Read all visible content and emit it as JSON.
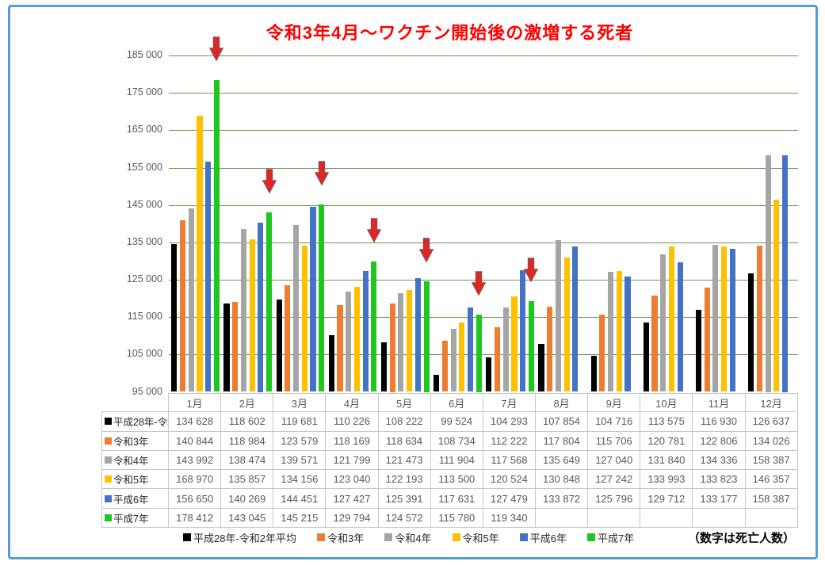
{
  "title": "令和3年4月～ワクチン開始後の激増する死者",
  "footnote": "（数字は死亡人数）",
  "chart_data": {
    "type": "bar",
    "title": "令和3年4月～ワクチン開始後の激増する死者",
    "categories": [
      "1月",
      "2月",
      "3月",
      "4月",
      "5月",
      "6月",
      "7月",
      "8月",
      "9月",
      "10月",
      "11月",
      "12月"
    ],
    "series": [
      {
        "name": "平成28年-令和2年平均",
        "color": "#000000",
        "values": [
          134628,
          118602,
          119681,
          110226,
          108222,
          99524,
          104293,
          107854,
          104716,
          113575,
          116930,
          126637
        ]
      },
      {
        "name": "令和3年",
        "color": "#ED7D31",
        "values": [
          140844,
          118984,
          123579,
          118169,
          118634,
          108734,
          112222,
          117804,
          115706,
          120781,
          122806,
          134026
        ]
      },
      {
        "name": "令和4年",
        "color": "#A5A5A5",
        "values": [
          143992,
          138474,
          139571,
          121799,
          121473,
          111904,
          117568,
          135649,
          127040,
          131840,
          134336,
          158387
        ]
      },
      {
        "name": "令和5年",
        "color": "#FFC000",
        "values": [
          168970,
          135857,
          134156,
          123040,
          122193,
          113500,
          120524,
          130848,
          127242,
          133993,
          133823,
          146357
        ]
      },
      {
        "name": "平成6年",
        "color": "#4472C4",
        "values": [
          156650,
          140269,
          144451,
          127427,
          125391,
          117631,
          127479,
          133872,
          125796,
          129712,
          133177,
          158387
        ]
      },
      {
        "name": "平成7年",
        "color": "#1EC71E",
        "values": [
          178412,
          143045,
          145215,
          129794,
          124572,
          115780,
          119340,
          null,
          null,
          null,
          null,
          null
        ]
      }
    ],
    "ylim": [
      95000,
      185000
    ],
    "ytick_step": 10000,
    "ytick_labels": [
      "95 000",
      "105 000",
      "115 000",
      "125 000",
      "135 000",
      "145 000",
      "155 000",
      "165 000",
      "175 000",
      "185 000"
    ],
    "grid": true,
    "legend_position": "bottom",
    "annotations": {
      "arrow_months": [
        0,
        1,
        2,
        3,
        4,
        5,
        6
      ],
      "arrow_color": "#E02525",
      "arrow_border_color": "#9E4444"
    },
    "gridline_color": "#74924F",
    "number_format": "space-thousands"
  }
}
